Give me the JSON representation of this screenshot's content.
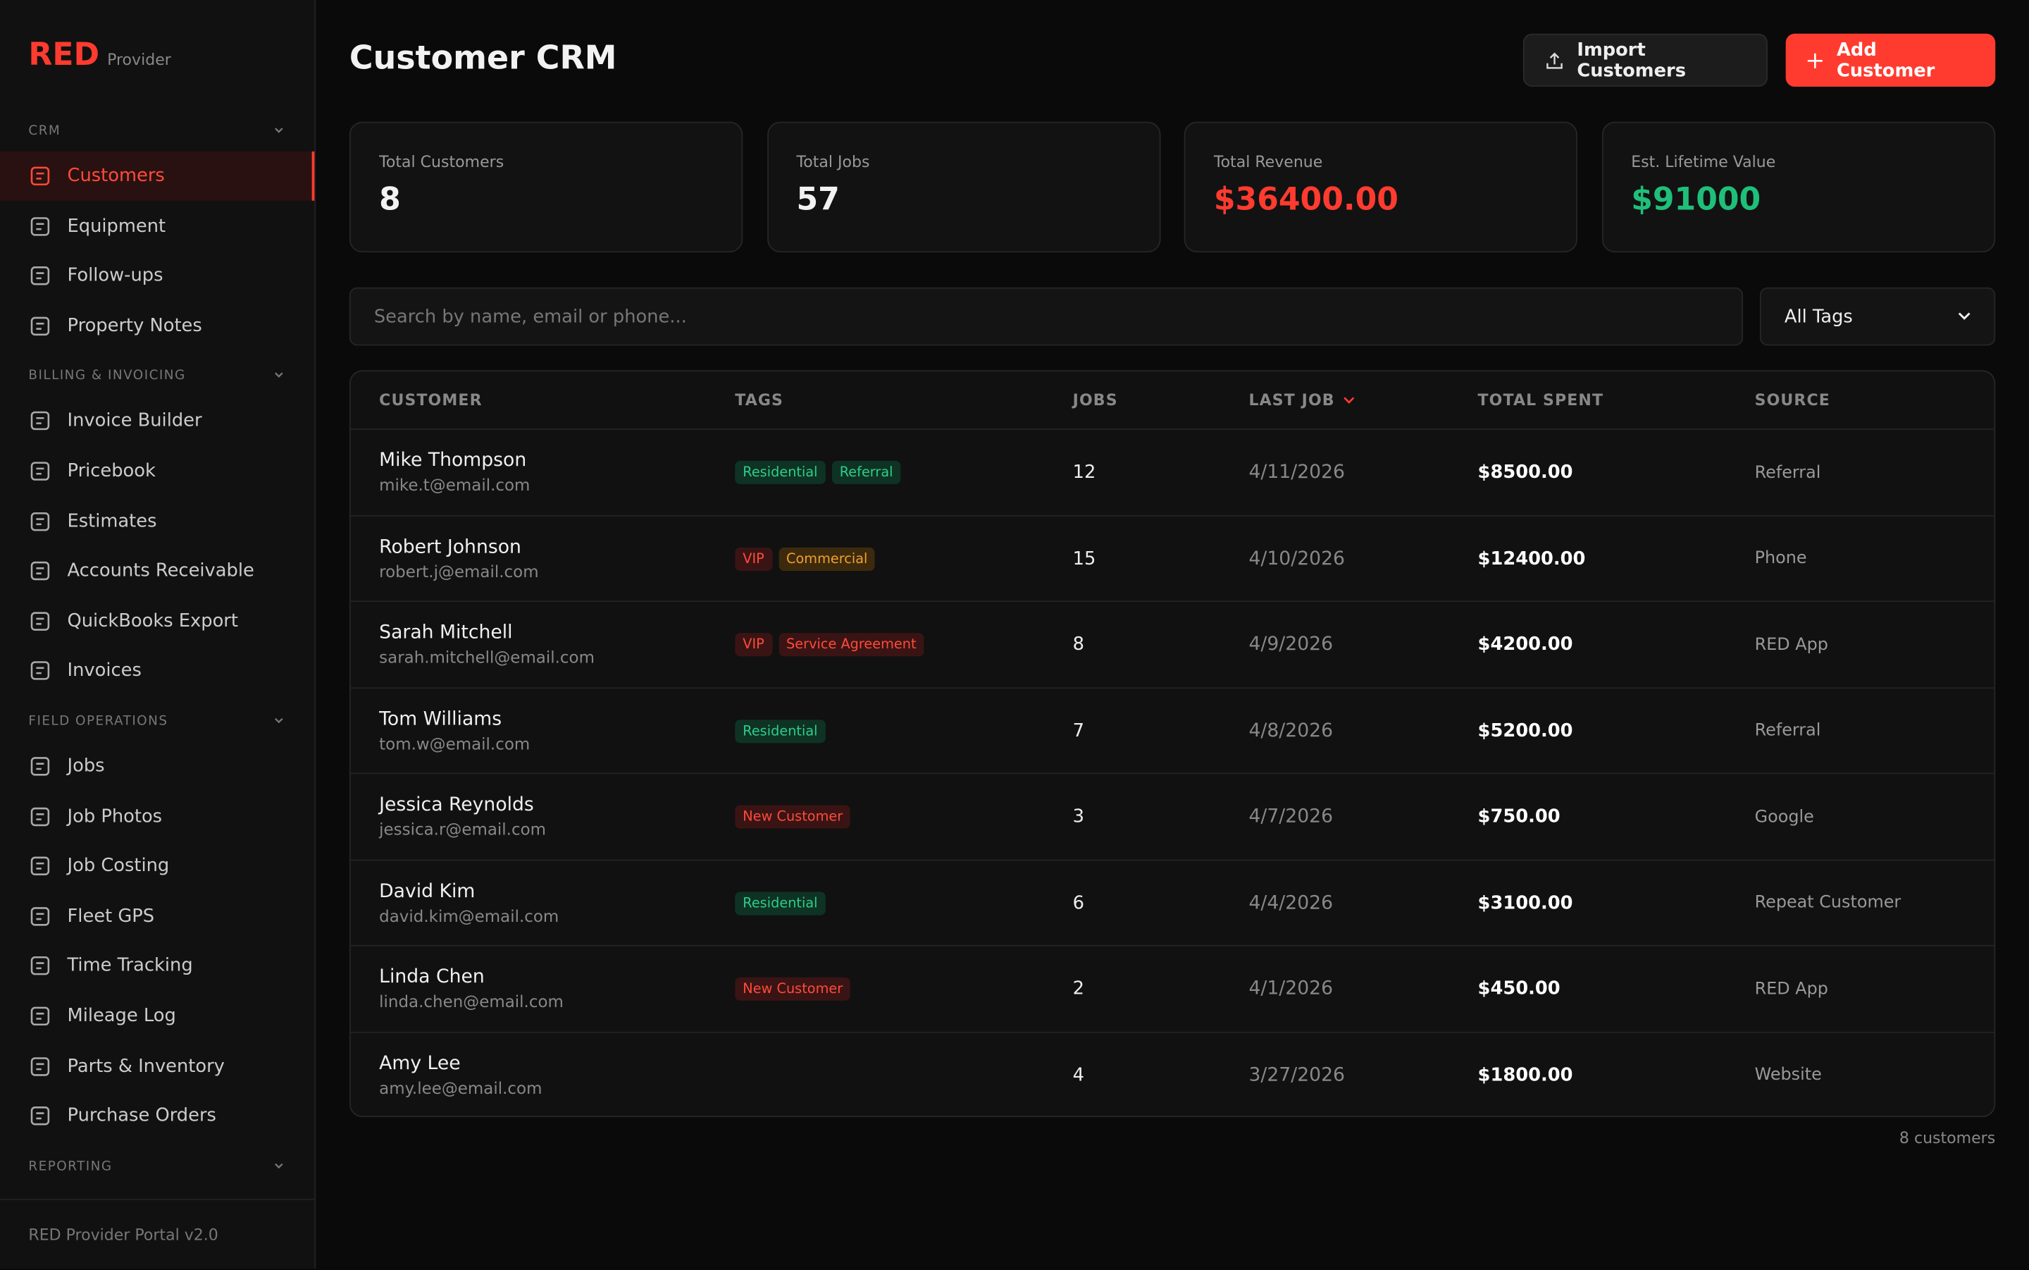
{
  "brand": {
    "name": "RED",
    "subtitle": "Provider"
  },
  "sidebar": [
    {
      "title": "CRM",
      "items": [
        "Customers",
        "Equipment",
        "Follow-ups",
        "Property Notes"
      ]
    },
    {
      "title": "BILLING & INVOICING",
      "items": [
        "Invoice Builder",
        "Pricebook",
        "Estimates",
        "Accounts Receivable",
        "QuickBooks Export",
        "Invoices"
      ]
    },
    {
      "title": "FIELD OPERATIONS",
      "items": [
        "Jobs",
        "Job Photos",
        "Job Costing",
        "Fleet GPS",
        "Time Tracking",
        "Mileage Log",
        "Parts & Inventory",
        "Purchase Orders"
      ]
    },
    {
      "title": "REPORTING",
      "items": []
    }
  ],
  "active_item": "Customers",
  "version": "RED Provider Portal v2.0",
  "header": {
    "title": "Customer CRM",
    "import_button": "Import Customers",
    "add_button": "Add Customer"
  },
  "stats": [
    {
      "label": "Total Customers",
      "value": "8",
      "color": "#f2f2f2"
    },
    {
      "label": "Total Jobs",
      "value": "57",
      "color": "#f2f2f2"
    },
    {
      "label": "Total Revenue",
      "value": "$36400.00",
      "color": "#ff3b2f"
    },
    {
      "label": "Est. Lifetime Value",
      "value": "$91000",
      "color": "#1fbf7a"
    }
  ],
  "search": {
    "placeholder": "Search by name, email or phone...",
    "filter": "All Tags"
  },
  "table": {
    "columns": [
      {
        "label": "CUSTOMER"
      },
      {
        "label": "TAGS"
      },
      {
        "label": "JOBS"
      },
      {
        "label": "LAST JOB",
        "sorted": "desc"
      },
      {
        "label": "TOTAL SPENT"
      },
      {
        "label": "SOURCE"
      }
    ],
    "rows": [
      {
        "name": "Mike Thompson",
        "email": "mike.t@email.com",
        "tags": [
          {
            "label": "Residential",
            "color": "green"
          },
          {
            "label": "Referral",
            "color": "green"
          }
        ],
        "jobs": 12,
        "last_job": "4/11/2026",
        "total_spent": "$8500.00",
        "source": "Referral"
      },
      {
        "name": "Robert Johnson",
        "email": "robert.j@email.com",
        "tags": [
          {
            "label": "VIP",
            "color": "red"
          },
          {
            "label": "Commercial",
            "color": "orange"
          }
        ],
        "jobs": 15,
        "last_job": "4/10/2026",
        "total_spent": "$12400.00",
        "source": "Phone"
      },
      {
        "name": "Sarah Mitchell",
        "email": "sarah.mitchell@email.com",
        "tags": [
          {
            "label": "VIP",
            "color": "red"
          },
          {
            "label": "Service Agreement",
            "color": "red"
          }
        ],
        "jobs": 8,
        "last_job": "4/9/2026",
        "total_spent": "$4200.00",
        "source": "RED App"
      },
      {
        "name": "Tom Williams",
        "email": "tom.w@email.com",
        "tags": [
          {
            "label": "Residential",
            "color": "green"
          }
        ],
        "jobs": 7,
        "last_job": "4/8/2026",
        "total_spent": "$5200.00",
        "source": "Referral"
      },
      {
        "name": "Jessica Reynolds",
        "email": "jessica.r@email.com",
        "tags": [
          {
            "label": "New Customer",
            "color": "red"
          }
        ],
        "jobs": 3,
        "last_job": "4/7/2026",
        "total_spent": "$750.00",
        "source": "Google"
      },
      {
        "name": "David Kim",
        "email": "david.kim@email.com",
        "tags": [
          {
            "label": "Residential",
            "color": "green"
          }
        ],
        "jobs": 6,
        "last_job": "4/4/2026",
        "total_spent": "$3100.00",
        "source": "Repeat Customer"
      },
      {
        "name": "Linda Chen",
        "email": "linda.chen@email.com",
        "tags": [
          {
            "label": "New Customer",
            "color": "red"
          }
        ],
        "jobs": 2,
        "last_job": "4/1/2026",
        "total_spent": "$450.00",
        "source": "RED App"
      },
      {
        "name": "Amy Lee",
        "email": "amy.lee@email.com",
        "tags": [],
        "jobs": 4,
        "last_job": "3/27/2026",
        "total_spent": "$1800.00",
        "source": "Website"
      }
    ],
    "footer": "8 customers"
  }
}
